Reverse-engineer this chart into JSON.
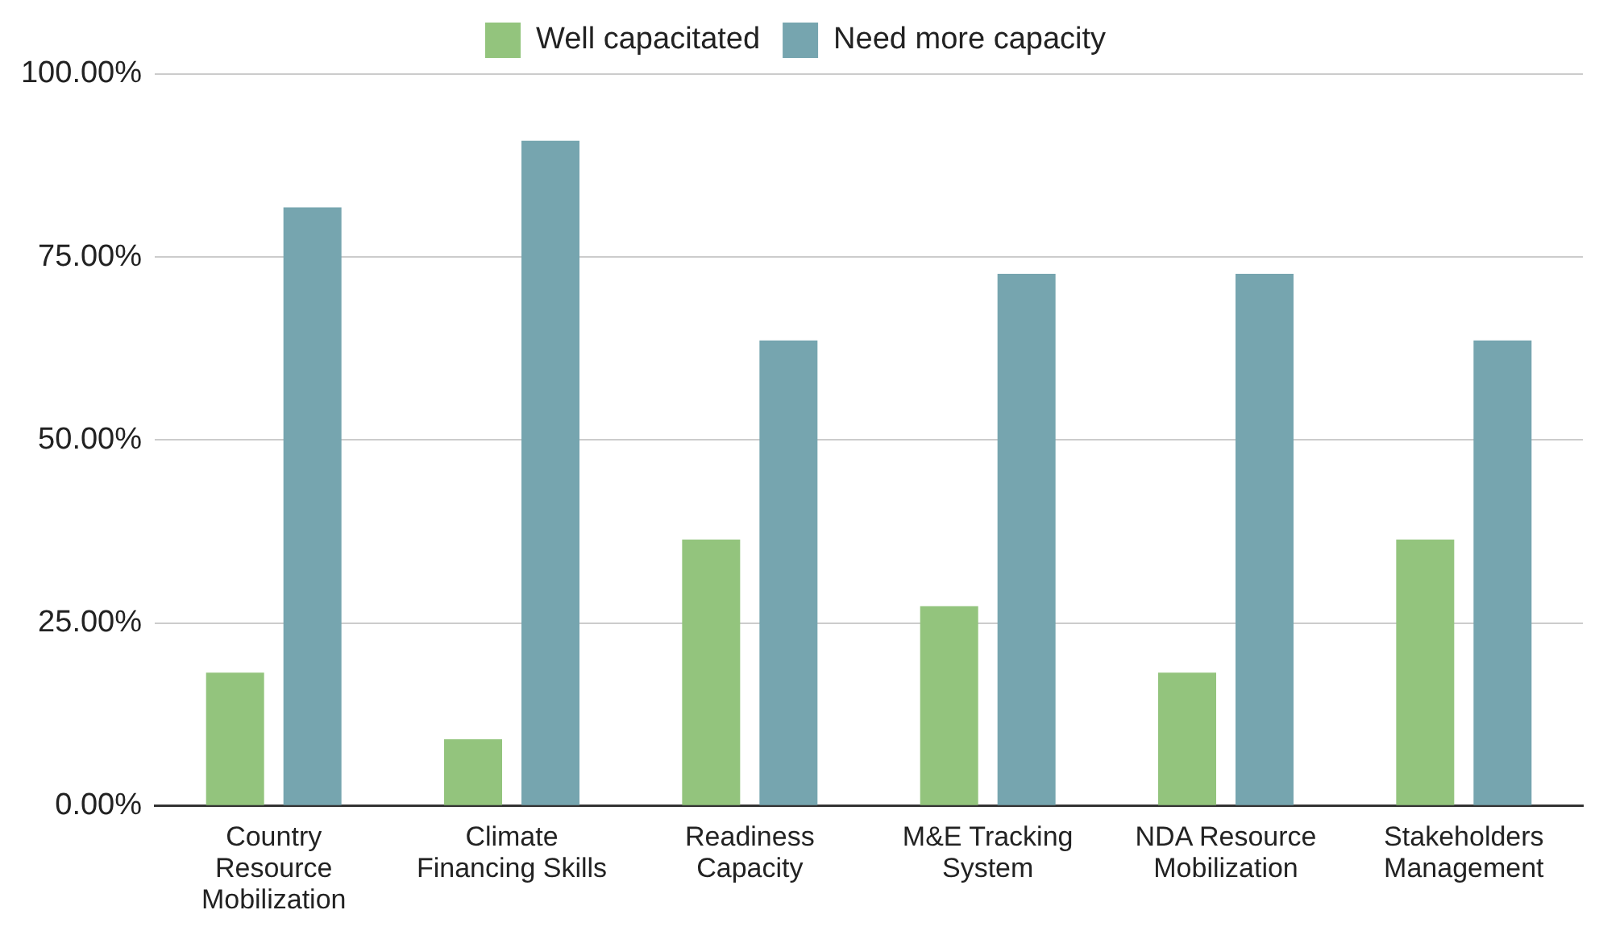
{
  "chart_data": {
    "type": "bar",
    "categories": [
      "Country Resource Mobilization",
      "Climate Financing Skills",
      "Readiness Capacity",
      "M&E Tracking System",
      "NDA Resource Mobilization",
      "Stakeholders Management"
    ],
    "series": [
      {
        "name": "Well capacitated",
        "color": "#93c47d",
        "values": [
          18.2,
          9.1,
          36.4,
          27.3,
          18.2,
          36.4
        ]
      },
      {
        "name": "Need more capacity",
        "color": "#76a5af",
        "values": [
          81.8,
          90.9,
          63.6,
          72.7,
          72.7,
          63.6
        ]
      }
    ],
    "ylim": [
      0,
      100
    ],
    "yticks": [
      {
        "value": 0,
        "label": "0.00%"
      },
      {
        "value": 25,
        "label": "25.00%"
      },
      {
        "value": 50,
        "label": "50.00%"
      },
      {
        "value": 75,
        "label": "75.00%"
      },
      {
        "value": 100,
        "label": "100.00%"
      }
    ],
    "grid": "y",
    "legend": "top"
  }
}
